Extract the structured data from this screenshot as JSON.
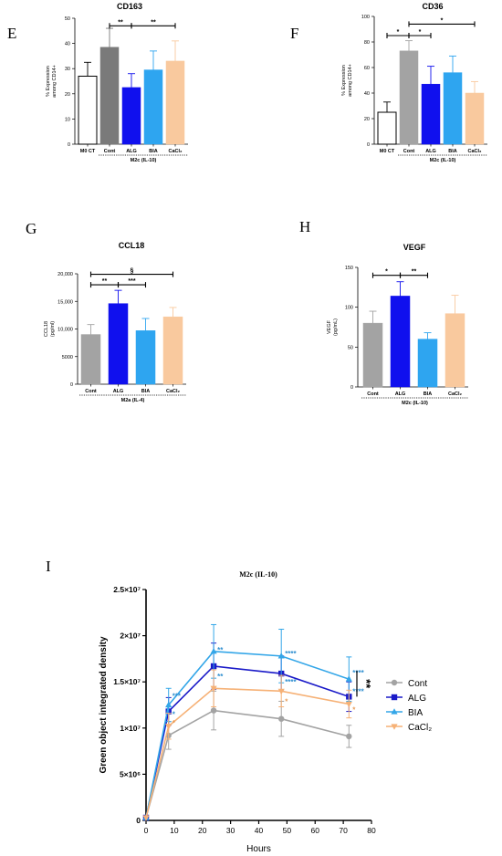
{
  "colors": {
    "white": "#ffffff",
    "dark_gray": "#7a7a7a",
    "gray": "#a3a3a3",
    "blue": "#1010ee",
    "light_blue": "#2ea5f0",
    "peach": "#f9c99e",
    "navy": "#1717c8",
    "line_gray": "#a3a3a3",
    "line_blue": "#1a1ac8",
    "line_light_blue": "#33a6e8",
    "line_orange": "#f6b176",
    "sig_blue": "#2f8fd0",
    "sig_orange": "#e89a55"
  },
  "chart_data": [
    {
      "panel": "E",
      "type": "bar",
      "title": "CD163",
      "ylabel_lines": [
        "% Expression",
        "among CD14+"
      ],
      "ylim": [
        0,
        50
      ],
      "yticks": [
        "0",
        "10",
        "20",
        "30",
        "40",
        "50"
      ],
      "categories": [
        "M0 CT",
        "Cont",
        "ALG",
        "BIA",
        "CaCl₂"
      ],
      "values": [
        27,
        38.5,
        22.5,
        29.5,
        33
      ],
      "errors": [
        5.5,
        7.5,
        5.5,
        7.5,
        8
      ],
      "group_label": "M2c (IL-10)",
      "significance": [
        {
          "from": 1,
          "to": 2,
          "label": "**",
          "level": 47
        },
        {
          "from": 2,
          "to": 4,
          "label": "**",
          "level": 47
        }
      ]
    },
    {
      "panel": "F",
      "type": "bar",
      "title": "CD36",
      "ylabel_lines": [
        "% Expression",
        "among CD14+"
      ],
      "ylim": [
        0,
        100
      ],
      "yticks": [
        "0",
        "20",
        "40",
        "60",
        "80",
        "100"
      ],
      "categories": [
        "M0 CT",
        "Cont",
        "ALG",
        "BIA",
        "CaCl₂"
      ],
      "values": [
        25,
        73,
        47,
        56,
        40
      ],
      "errors": [
        8,
        8,
        14,
        13,
        9
      ],
      "group_label": "M2c (IL-10)",
      "significance": [
        {
          "from": 0,
          "to": 1,
          "label": "*",
          "level": 85
        },
        {
          "from": 1,
          "to": 2,
          "label": "*",
          "level": 85
        },
        {
          "from": 1,
          "to": 4,
          "label": "*",
          "level": 94
        }
      ]
    },
    {
      "panel": "G",
      "type": "bar",
      "title": "CCL18",
      "ylabel_lines": [
        "CCL18",
        "(pg/ml)"
      ],
      "ylim": [
        0,
        20000
      ],
      "yticks": [
        "0",
        "5000",
        "10,000",
        "15,000",
        "20,000"
      ],
      "categories": [
        "Cont",
        "ALG",
        "BIA",
        "CaCl₂"
      ],
      "values": [
        9000,
        14600,
        9700,
        12200
      ],
      "errors": [
        1800,
        2400,
        2200,
        1700
      ],
      "group_label": "M2a (IL-4)",
      "significance": [
        {
          "from": 0,
          "to": 1,
          "label": "**",
          "level": 18000
        },
        {
          "from": 1,
          "to": 2,
          "label": "***",
          "level": 18000
        },
        {
          "from": 0,
          "to": 3,
          "label": "§",
          "level": 19900
        }
      ]
    },
    {
      "panel": "H",
      "type": "bar",
      "title": "VEGF",
      "ylabel_lines": [
        "VEGF",
        "(pg/mL)"
      ],
      "ylim": [
        0,
        150
      ],
      "yticks": [
        "0",
        "50",
        "100",
        "150"
      ],
      "categories": [
        "Cont",
        "ALG",
        "BIA",
        "CaCl₂"
      ],
      "values": [
        80,
        114,
        60,
        92
      ],
      "errors": [
        15,
        18,
        8,
        23
      ],
      "group_label": "M2c (IL-10)",
      "significance": [
        {
          "from": 0,
          "to": 1,
          "label": "*",
          "level": 140
        },
        {
          "from": 1,
          "to": 2,
          "label": "**",
          "level": 140
        }
      ]
    },
    {
      "panel": "I",
      "type": "line",
      "title": "M2c (IL-10)",
      "xlabel": "Hours",
      "ylabel": "Green object integrated density",
      "xlim": [
        0,
        80
      ],
      "xticks": [
        0,
        10,
        20,
        30,
        40,
        50,
        60,
        70,
        80
      ],
      "ylim": [
        0,
        25000000
      ],
      "ytick_values": [
        0,
        5000000,
        10000000,
        15000000,
        20000000,
        25000000
      ],
      "ytick_labels": [
        "0",
        "5×10⁶",
        "1×10⁷",
        "1.5×10⁷",
        "2×10⁷",
        "2.5×10⁷"
      ],
      "x": [
        0,
        8,
        24,
        48,
        72
      ],
      "series": [
        {
          "name": "Cont",
          "values": [
            300000,
            9200000,
            11900000,
            11000000,
            9100000
          ],
          "errors": [
            0,
            1500000,
            2100000,
            1900000,
            1200000
          ]
        },
        {
          "name": "ALG",
          "values": [
            300000,
            11800000,
            16700000,
            15900000,
            13400000
          ],
          "errors": [
            0,
            1500000,
            2500000,
            1900000,
            1600000
          ]
        },
        {
          "name": "BIA",
          "values": [
            300000,
            12500000,
            18300000,
            17800000,
            15300000
          ],
          "errors": [
            0,
            1800000,
            2900000,
            2900000,
            2400000
          ]
        },
        {
          "name": "CaCl₂",
          "values": [
            300000,
            10200000,
            14300000,
            14000000,
            12600000
          ],
          "errors": [
            0,
            1400000,
            2000000,
            1700000,
            1500000
          ]
        }
      ],
      "annotations": [
        {
          "x": 8,
          "y": 13200000,
          "text": "***",
          "color": "sig_blue"
        },
        {
          "x": 8,
          "y": 11200000,
          "text": "*",
          "color": "sig_blue"
        },
        {
          "x": 8,
          "y": 10300000,
          "text": "*",
          "color": "sig_orange"
        },
        {
          "x": 24,
          "y": 18200000,
          "text": "**",
          "color": "sig_blue"
        },
        {
          "x": 24,
          "y": 15300000,
          "text": "**",
          "color": "sig_blue"
        },
        {
          "x": 48,
          "y": 17800000,
          "text": "****",
          "color": "sig_blue"
        },
        {
          "x": 48,
          "y": 14700000,
          "text": "****",
          "color": "sig_blue"
        },
        {
          "x": 48,
          "y": 12600000,
          "text": "*",
          "color": "sig_orange"
        },
        {
          "x": 72,
          "y": 15700000,
          "text": "****",
          "color": "sig_blue"
        },
        {
          "x": 72,
          "y": 13700000,
          "text": "****",
          "color": "sig_blue"
        },
        {
          "x": 72,
          "y": 11700000,
          "text": "*",
          "color": "sig_orange"
        }
      ],
      "side_significance": "**"
    }
  ]
}
